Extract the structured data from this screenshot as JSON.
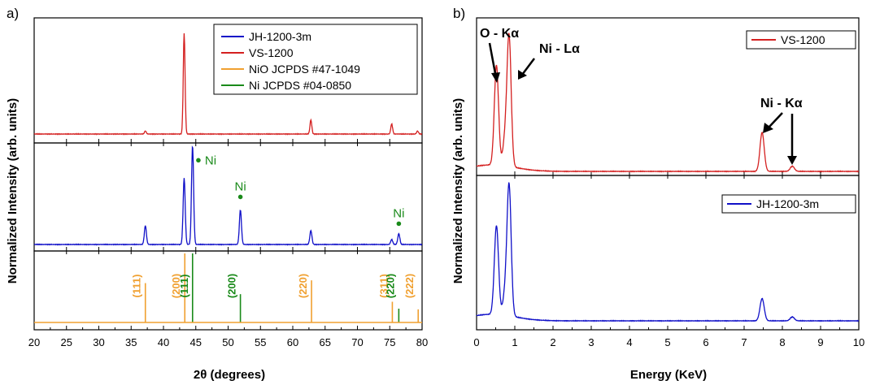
{
  "colors": {
    "blue": "#1010c8",
    "red": "#d42020",
    "orange": "#f0a030",
    "green": "#1a8a1a"
  },
  "chart_data": [
    {
      "panel_label": "a)",
      "type": "line",
      "xlabel": "2θ (degrees)",
      "ylabel": "Normalized Intensity (arb. units)",
      "xlim": [
        20,
        80
      ],
      "xticks": [
        20,
        25,
        30,
        35,
        40,
        45,
        50,
        55,
        60,
        65,
        70,
        75,
        80
      ],
      "legend": [
        {
          "label": "JH-1200-3m",
          "color": "#1010c8"
        },
        {
          "label": "VS-1200",
          "color": "#d42020"
        },
        {
          "label": "NiO JCPDS #47-1049",
          "color": "#f0a030"
        },
        {
          "label": "Ni JCPDS #04-0850",
          "color": "#1a8a1a"
        }
      ],
      "series": [
        {
          "name": "VS-1200",
          "color": "#d42020",
          "peaks": [
            {
              "x": 37.2,
              "h": 0.03
            },
            {
              "x": 43.2,
              "h": 1.0
            },
            {
              "x": 62.8,
              "h": 0.14
            },
            {
              "x": 75.3,
              "h": 0.1
            },
            {
              "x": 79.3,
              "h": 0.03
            }
          ]
        },
        {
          "name": "JH-1200-3m",
          "color": "#1010c8",
          "peaks": [
            {
              "x": 37.2,
              "h": 0.19
            },
            {
              "x": 43.2,
              "h": 0.67
            },
            {
              "x": 44.5,
              "h": 1.0
            },
            {
              "x": 51.9,
              "h": 0.35
            },
            {
              "x": 62.8,
              "h": 0.14
            },
            {
              "x": 75.3,
              "h": 0.05
            },
            {
              "x": 76.4,
              "h": 0.11
            }
          ]
        }
      ],
      "annotations": [
        {
          "text": "Ni",
          "x": 45.4,
          "y": 0.85
        },
        {
          "text": "Ni",
          "x": 51.9,
          "y": 0.48
        },
        {
          "text": "Ni",
          "x": 76.4,
          "y": 0.21
        }
      ],
      "reference_lines": [
        {
          "x": 37.2,
          "h": 0.57,
          "color": "#f0a030",
          "hkl": "(111)"
        },
        {
          "x": 43.3,
          "h": 1.0,
          "color": "#f0a030",
          "hkl": "(200)"
        },
        {
          "x": 44.5,
          "h": 1.0,
          "color": "#1a8a1a",
          "hkl": "(111)"
        },
        {
          "x": 51.9,
          "h": 0.41,
          "color": "#1a8a1a",
          "hkl": "(200)"
        },
        {
          "x": 62.9,
          "h": 0.61,
          "color": "#f0a030",
          "hkl": "(220)"
        },
        {
          "x": 75.4,
          "h": 0.3,
          "color": "#f0a030",
          "hkl": "(311)"
        },
        {
          "x": 76.4,
          "h": 0.2,
          "color": "#1a8a1a",
          "hkl": "(220)"
        },
        {
          "x": 79.4,
          "h": 0.19,
          "color": "#f0a030",
          "hkl": "(222)"
        }
      ]
    },
    {
      "panel_label": "b)",
      "type": "line",
      "xlabel": "Energy (KeV)",
      "ylabel": "Normalized Intensity (arb. units)",
      "xlim": [
        0,
        10
      ],
      "xticks": [
        0,
        1,
        2,
        3,
        4,
        5,
        6,
        7,
        8,
        9,
        10
      ],
      "series": [
        {
          "name": "VS-1200",
          "color": "#d42020",
          "peaks": [
            {
              "x": 0.52,
              "h": 0.77
            },
            {
              "x": 0.74,
              "h": 0.18
            },
            {
              "x": 0.85,
              "h": 1.0
            },
            {
              "x": 7.47,
              "h": 0.3
            },
            {
              "x": 8.26,
              "h": 0.04
            }
          ]
        },
        {
          "name": "JH-1200-3m",
          "color": "#1010c8",
          "peaks": [
            {
              "x": 0.52,
              "h": 0.68
            },
            {
              "x": 0.74,
              "h": 0.14
            },
            {
              "x": 0.85,
              "h": 1.0
            },
            {
              "x": 7.47,
              "h": 0.17
            },
            {
              "x": 8.26,
              "h": 0.03
            }
          ]
        }
      ],
      "annotations": [
        {
          "text": "O - Kα"
        },
        {
          "text": "Ni - Lα"
        },
        {
          "text": "Ni - Kα"
        }
      ]
    }
  ]
}
